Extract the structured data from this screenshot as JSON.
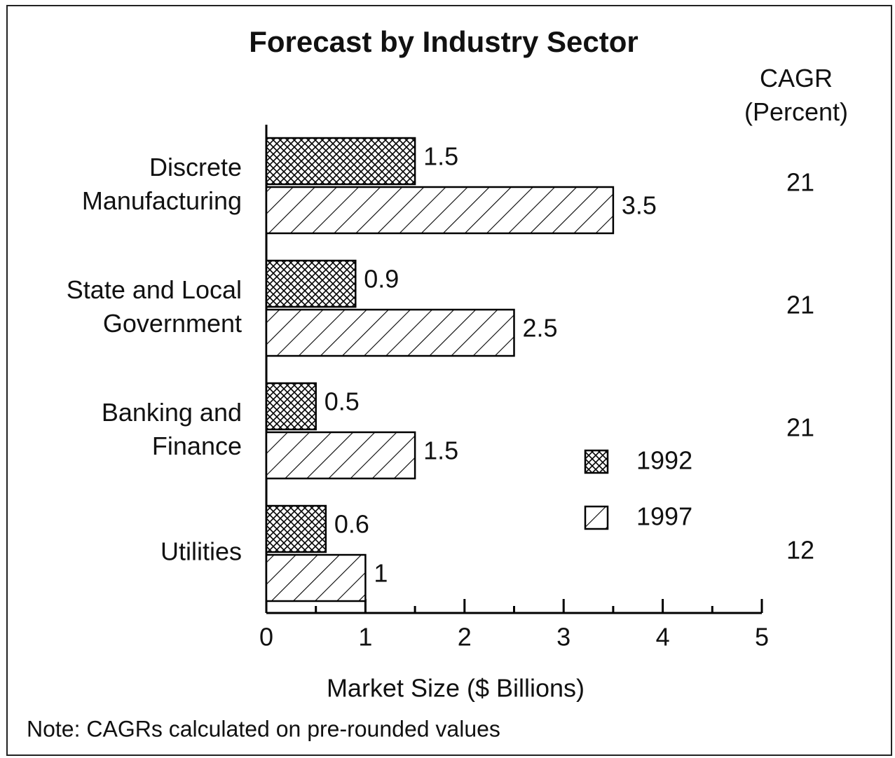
{
  "chart_data": {
    "type": "bar",
    "orientation": "horizontal",
    "title": "Forecast by Industry Sector",
    "categories": [
      "Discrete\nManufacturing",
      "State and Local\nGovernment",
      "Banking and\nFinance",
      "Utilities"
    ],
    "series": [
      {
        "name": "1992",
        "color": "#000000",
        "pattern": "crosshatch",
        "values": [
          1.5,
          0.9,
          0.5,
          0.6
        ]
      },
      {
        "name": "1997",
        "color": "#000000",
        "pattern": "hatch",
        "values": [
          3.5,
          2.5,
          1.5,
          1
        ]
      }
    ],
    "xlabel": "Market Size ($ Billions)",
    "xlim": [
      0,
      5
    ],
    "xticks": [
      0,
      1,
      2,
      3,
      4,
      5
    ],
    "xminorticks": [
      0.5,
      1.5,
      2.5,
      3.5,
      4.5
    ],
    "side_column": {
      "header": "CAGR\n(Percent)",
      "values": [
        21,
        21,
        21,
        12
      ]
    },
    "note": "Note:  CAGRs calculated on pre-rounded values",
    "legend": "right"
  }
}
